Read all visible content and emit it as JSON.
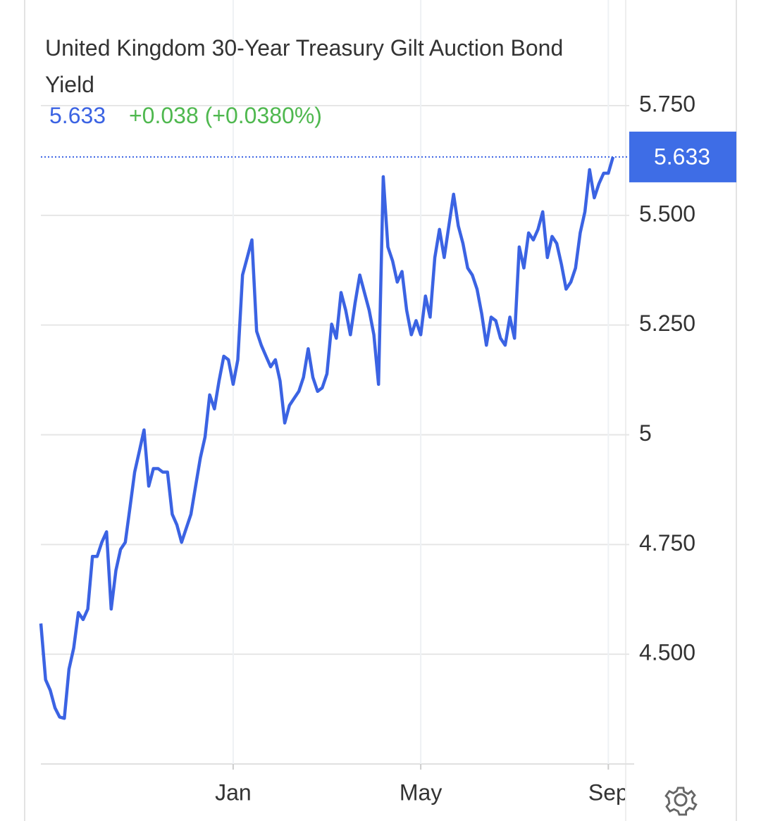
{
  "chart_data": {
    "type": "line",
    "title": "United Kingdom 30-Year Treasury Gilt Auction Bond Yield",
    "change": "+0.038 (+0.0380%)",
    "categories": [
      null,
      null,
      null,
      null,
      null,
      null,
      null,
      null,
      null,
      null,
      null,
      null,
      null,
      null,
      null,
      null,
      null,
      null,
      null,
      null,
      null,
      null,
      null,
      null,
      null,
      null,
      null,
      null,
      null,
      null,
      null,
      null,
      null,
      null,
      null,
      null,
      null,
      null,
      null,
      null,
      null,
      "Jan",
      null,
      null,
      null,
      null,
      null,
      null,
      null,
      null,
      null,
      null,
      null,
      null,
      null,
      null,
      null,
      null,
      null,
      null,
      null,
      null,
      null,
      null,
      null,
      null,
      null,
      null,
      null,
      null,
      null,
      null,
      null,
      null,
      null,
      null,
      null,
      null,
      null,
      null,
      null,
      "May",
      null,
      null,
      null,
      null,
      null,
      null,
      null,
      null,
      null,
      null,
      null,
      null,
      null,
      null,
      null,
      null,
      null,
      null,
      null,
      null,
      null,
      null,
      null,
      null,
      null,
      null,
      null,
      null,
      null,
      null,
      null,
      null,
      null,
      null,
      null,
      null,
      null,
      null,
      null,
      "Sep",
      null
    ],
    "series": [
      {
        "name": "Bond Yield",
        "color": "#3b63e3",
        "values": [
          4.57,
          4.442,
          4.418,
          4.378,
          4.357,
          4.354,
          4.466,
          4.514,
          4.595,
          4.579,
          4.603,
          4.723,
          4.723,
          4.755,
          4.779,
          4.603,
          4.691,
          4.739,
          4.755,
          4.835,
          4.915,
          4.963,
          5.011,
          4.883,
          4.923,
          4.923,
          4.915,
          4.915,
          4.819,
          4.795,
          4.755,
          4.787,
          4.819,
          4.883,
          4.947,
          4.995,
          5.091,
          5.059,
          5.123,
          5.179,
          5.171,
          5.115,
          5.171,
          5.364,
          5.404,
          5.444,
          5.236,
          5.204,
          5.179,
          5.155,
          5.171,
          5.123,
          5.027,
          5.067,
          5.083,
          5.099,
          5.131,
          5.196,
          5.131,
          5.099,
          5.107,
          5.139,
          5.252,
          5.22,
          5.324,
          5.284,
          5.228,
          5.3,
          5.364,
          5.324,
          5.284,
          5.228,
          5.115,
          5.588,
          5.428,
          5.396,
          5.348,
          5.372,
          5.284,
          5.228,
          5.26,
          5.228,
          5.316,
          5.268,
          5.404,
          5.468,
          5.404,
          5.476,
          5.548,
          5.476,
          5.436,
          5.38,
          5.364,
          5.332,
          5.276,
          5.204,
          5.268,
          5.26,
          5.22,
          5.204,
          5.268,
          5.22,
          5.428,
          5.38,
          5.46,
          5.444,
          5.468,
          5.508,
          5.404,
          5.452,
          5.436,
          5.388,
          5.332,
          5.348,
          5.38,
          5.46,
          5.508,
          5.604,
          5.54,
          5.572,
          5.596,
          5.596,
          5.633
        ]
      }
    ],
    "ylim": [
      4.25,
      5.75
    ],
    "yticks": [
      {
        "value": 4.5,
        "label": "4.500"
      },
      {
        "value": 4.75,
        "label": "4.750"
      },
      5,
      {
        "value": 5.25,
        "label": "5.250"
      },
      {
        "value": 5.5,
        "label": "5.500"
      },
      {
        "value": 5.75,
        "label": "5.750"
      }
    ],
    "grid": true
  }
}
